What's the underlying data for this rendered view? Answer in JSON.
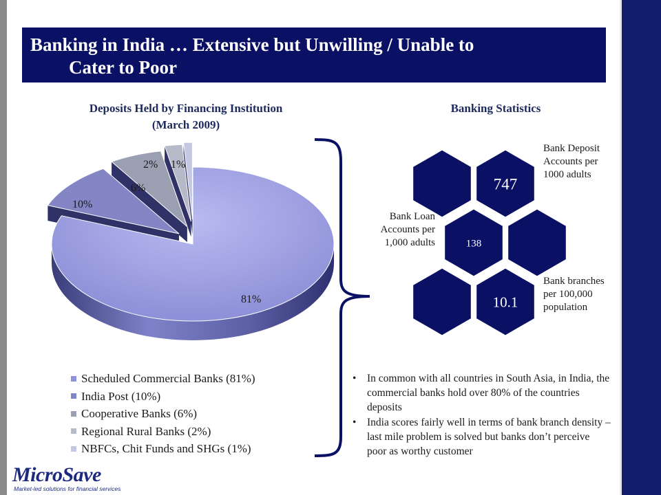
{
  "slide": {
    "title_line1": "Banking in India … Extensive but Unwilling / Unable to",
    "title_line2": "Cater to Poor"
  },
  "pie_section": {
    "title_line1": "Deposits Held by Financing Institution",
    "title_line2": "(March 2009)"
  },
  "chart_data": {
    "type": "pie",
    "title": "Deposits Held by Financing Institution (March 2009)",
    "slices": [
      {
        "label": "Scheduled Commercial Banks (81%)",
        "value": 81,
        "data_label": "81%",
        "color": "#8f91da"
      },
      {
        "label": "India Post (10%)",
        "value": 10,
        "data_label": "10%",
        "color": "#8385c4"
      },
      {
        "label": "Cooperative Banks (6%)",
        "value": 6,
        "data_label": "6%",
        "color": "#9aa0b2"
      },
      {
        "label": "Regional Rural Banks (2%)",
        "value": 2,
        "data_label": "2%",
        "color": "#b6b9c8"
      },
      {
        "label": "NBFCs, Chit Funds and SHGs (1%)",
        "value": 1,
        "data_label": "1%",
        "color": "#c5c8e2"
      }
    ],
    "legend_position": "bottom"
  },
  "stats_section": {
    "title": "Banking Statistics",
    "items": [
      {
        "value": "747",
        "label": "Bank Deposit Accounts per 1000 adults"
      },
      {
        "value": "138",
        "label": "Bank Loan Accounts per 1,000 adults"
      },
      {
        "value": "10.1",
        "label": "Bank branches per 100,000 population"
      }
    ]
  },
  "bullets": [
    "In common with all countries in South Asia, in India, the commercial banks hold over 80% of the countries deposits",
    "India scores fairly well in terms of bank branch density – last mile problem is solved but banks don’t perceive poor as worthy customer"
  ],
  "bullet_glyph": "•",
  "logo": {
    "name": "MicroSave",
    "tagline": "Market-led solutions for financial services"
  },
  "colors": {
    "title_bg": "#0a1064",
    "right_bar": "#141e6e",
    "hexagon": "#0a1064",
    "subheading": "#1c2a5e"
  }
}
